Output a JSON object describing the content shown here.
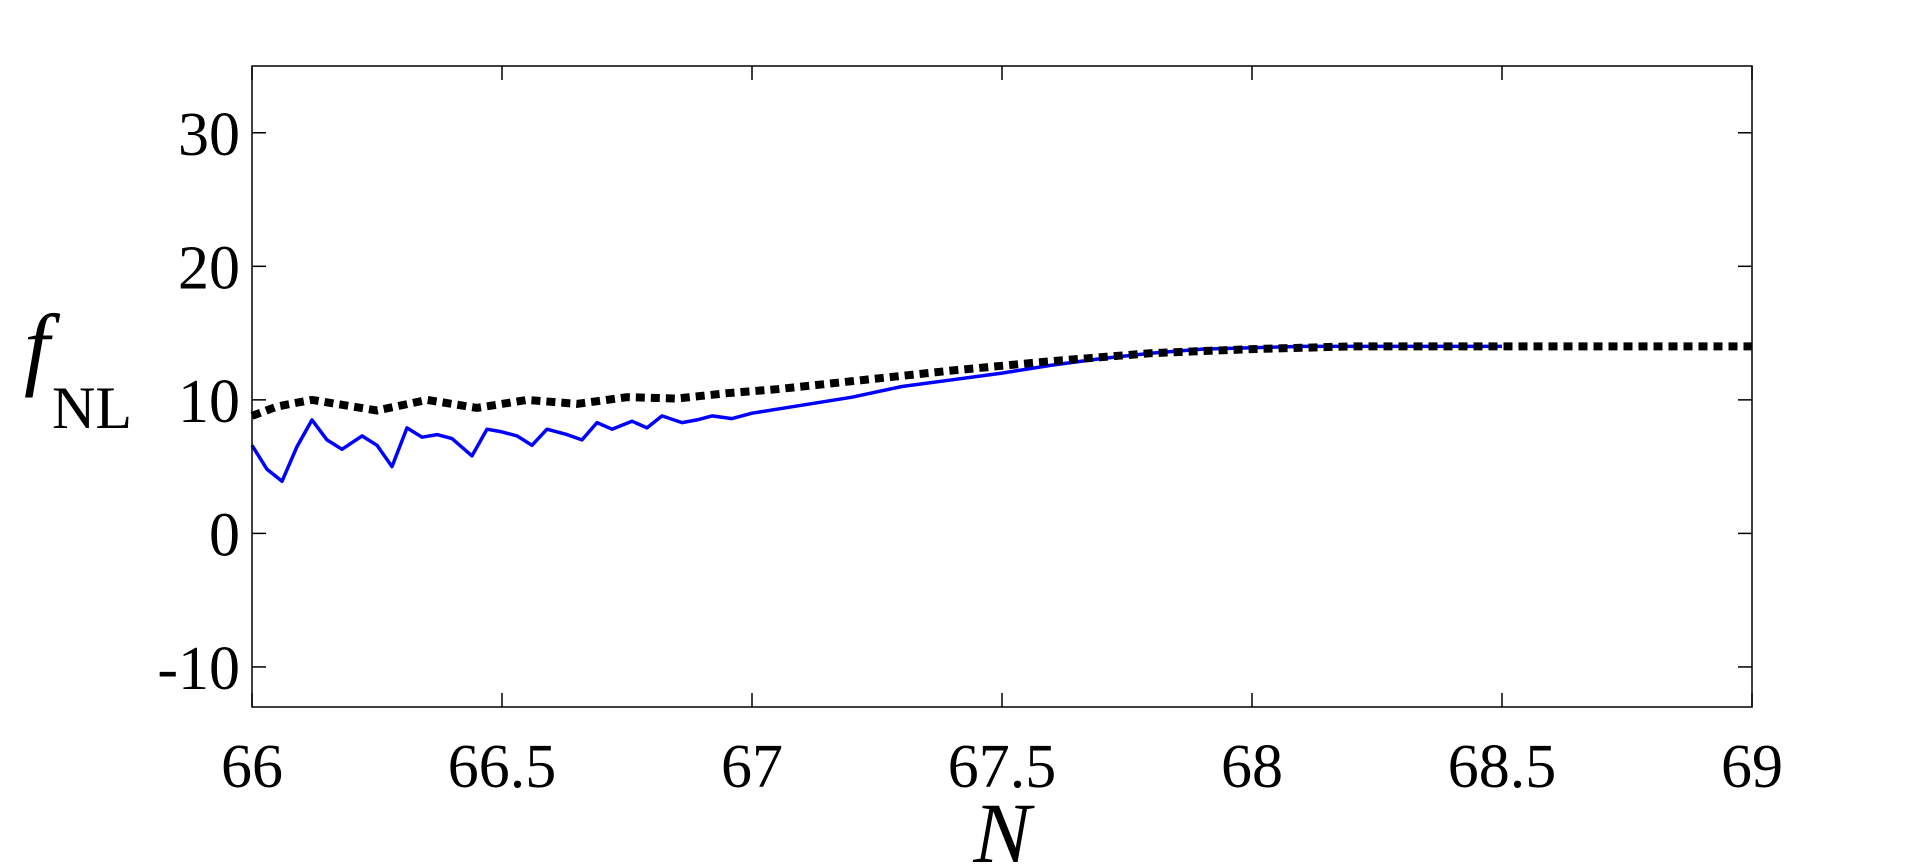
{
  "chart_data": {
    "type": "line",
    "title": "",
    "xlabel": "N",
    "ylabel_main": "f",
    "ylabel_sub": "NL",
    "xlim": [
      66,
      69
    ],
    "ylim": [
      -13,
      35
    ],
    "xticks": [
      66,
      66.5,
      67,
      67.5,
      68,
      68.5,
      69
    ],
    "xtick_labels": [
      "66",
      "66.5",
      "67",
      "67.5",
      "68",
      "68.5",
      "69"
    ],
    "yticks": [
      -10,
      0,
      10,
      20,
      30
    ],
    "ytick_labels": [
      "-10",
      "0",
      "10",
      "20",
      "30"
    ],
    "grid": false,
    "colors": {
      "oscillating": "#0000ff",
      "smooth": "#000000"
    },
    "series": [
      {
        "style": "solid",
        "color": "#0000ff",
        "x": [
          66.0,
          66.03,
          66.06,
          66.09,
          66.12,
          66.15,
          66.18,
          66.22,
          66.25,
          66.28,
          66.31,
          66.34,
          66.37,
          66.4,
          66.44,
          66.47,
          66.5,
          66.53,
          66.56,
          66.59,
          66.63,
          66.66,
          66.69,
          66.72,
          66.76,
          66.79,
          66.82,
          66.86,
          66.89,
          66.92,
          66.96,
          67.0,
          67.05,
          67.1,
          67.15,
          67.2,
          67.25,
          67.3,
          67.4,
          67.5,
          67.6,
          67.7,
          67.8,
          67.9,
          68.0,
          68.1,
          68.2,
          68.3,
          68.5
        ],
        "y": [
          6.6,
          4.8,
          3.9,
          6.5,
          8.5,
          7.0,
          6.3,
          7.3,
          6.6,
          5.0,
          7.9,
          7.2,
          7.4,
          7.1,
          5.8,
          7.8,
          7.6,
          7.3,
          6.6,
          7.8,
          7.4,
          7.0,
          8.3,
          7.8,
          8.4,
          7.9,
          8.8,
          8.3,
          8.5,
          8.8,
          8.6,
          9.0,
          9.3,
          9.6,
          9.9,
          10.2,
          10.6,
          11.0,
          11.5,
          12.0,
          12.6,
          13.1,
          13.5,
          13.8,
          13.9,
          14.0,
          14.0,
          14.0,
          14.0
        ]
      },
      {
        "style": "dashed",
        "color": "#000000",
        "x": [
          66.0,
          66.05,
          66.12,
          66.25,
          66.35,
          66.45,
          66.55,
          66.65,
          66.75,
          66.85,
          66.95,
          67.05,
          67.2,
          67.4,
          67.6,
          67.8,
          68.0,
          68.2,
          68.4,
          68.6,
          68.8,
          69.0
        ],
        "y": [
          8.8,
          9.5,
          10.0,
          9.2,
          10.0,
          9.4,
          10.0,
          9.7,
          10.2,
          10.1,
          10.5,
          10.8,
          11.4,
          12.2,
          12.9,
          13.5,
          13.8,
          14.0,
          14.0,
          14.0,
          14.0,
          14.0
        ]
      }
    ]
  }
}
